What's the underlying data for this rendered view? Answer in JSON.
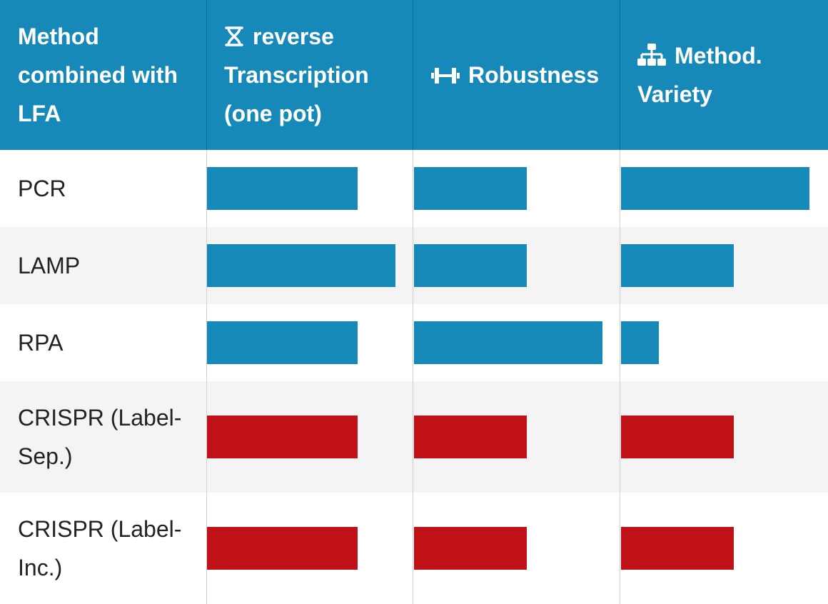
{
  "table": {
    "header": {
      "method": "Method combined with LFA",
      "col1": "reverse Transcription (one pot)",
      "col2": "Robustness",
      "col3": "Method. Variety"
    },
    "rows": [
      {
        "label": "PCR"
      },
      {
        "label": "LAMP"
      },
      {
        "label": "RPA"
      },
      {
        "label": "CRISPR (Label-Sep.)"
      },
      {
        "label": "CRISPR (Label-Inc.)"
      }
    ]
  },
  "colors": {
    "header_bg": "#1789b9",
    "blue_bar": "#1789b9",
    "red_bar": "#c01216",
    "alt_row": "#f4f4f4"
  },
  "icons": {
    "col1": "hourglass-icon",
    "col2": "dumbbell-icon",
    "col3": "sitemap-icon"
  },
  "chart_data": {
    "type": "table",
    "columns": [
      "Method combined with LFA",
      "reverse Transcription (one pot)",
      "Robustness",
      "Method. Variety"
    ],
    "rows": [
      "PCR",
      "LAMP",
      "RPA",
      "CRISPR (Label-Sep.)",
      "CRISPR (Label-Inc.)"
    ],
    "values": {
      "reverse Transcription (one pot)": [
        0.8,
        1.0,
        0.8,
        0.8,
        0.8
      ],
      "Robustness": [
        0.6,
        0.6,
        1.0,
        0.6,
        0.6
      ],
      "Method. Variety": [
        1.0,
        0.6,
        0.2,
        0.6,
        0.6
      ]
    },
    "bar_colors": [
      "blue",
      "blue",
      "blue",
      "red",
      "red"
    ]
  }
}
